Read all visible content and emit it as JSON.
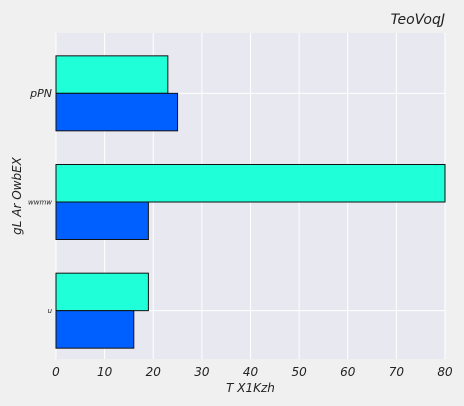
{
  "chart_data": {
    "type": "bar",
    "orientation": "horizontal",
    "title": "TeoVoqJ",
    "xlabel": "T  X1Kzh",
    "ylabel": "gL  Ar  OwbEX",
    "categories": [
      "pPN",
      "wwmw",
      "u"
    ],
    "series": [
      {
        "values": [
          23,
          80,
          19
        ],
        "color": "#1fffd8"
      },
      {
        "values": [
          25,
          19,
          16
        ],
        "color": "#0060ff"
      }
    ],
    "xlim": [
      0,
      80
    ],
    "xticks": [
      "0",
      "10",
      "20",
      "30",
      "40",
      "50",
      "60",
      "70",
      "80"
    ],
    "grid": true,
    "background": "#e8e8f0",
    "figure_background": "#f0f0f0"
  }
}
